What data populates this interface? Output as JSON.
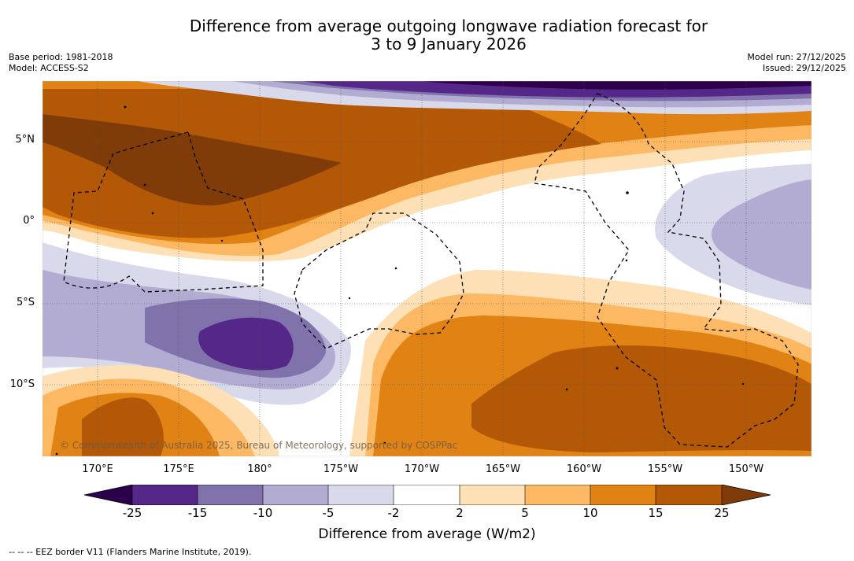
{
  "title": {
    "line1": "Difference from average outgoing longwave radiation forecast for",
    "line2": "3 to 9 January 2026"
  },
  "meta": {
    "base_period": "Base period: 1981-2018",
    "model": "Model: ACCESS-S2",
    "model_run": "Model run: 27/12/2025",
    "issued": "Issued: 29/12/2025"
  },
  "axes": {
    "lat_labels": [
      "5°N",
      "0°",
      "5°S",
      "10°S"
    ],
    "lon_labels": [
      "170°E",
      "175°E",
      "180°",
      "175°W",
      "170°W",
      "165°W",
      "160°W",
      "155°W",
      "150°W"
    ]
  },
  "copyright": "© Commonwealth of Australia 2025, Bureau of Meteorology, supported by COSPPac",
  "colorbar": {
    "ticks": [
      "-25",
      "-15",
      "-10",
      "-5",
      "-2",
      "2",
      "5",
      "10",
      "15",
      "25"
    ],
    "colors": {
      "lt25": "#2d004b",
      "m25_15": "#542788",
      "m15_10": "#8073ac",
      "m10_5": "#b2abd2",
      "m5_2": "#d8daeb",
      "m2_2": "#ffffff",
      "p2_5": "#fee0b6",
      "p5_10": "#fdb863",
      "p10_15": "#e08214",
      "p15_25": "#b35806",
      "gt25": "#7f3b08"
    },
    "label": "Difference from average (W/m2)"
  },
  "legend": {
    "eez": "--  --  -- EEZ border V11 (Flanders Marine Institute, 2019)."
  }
}
